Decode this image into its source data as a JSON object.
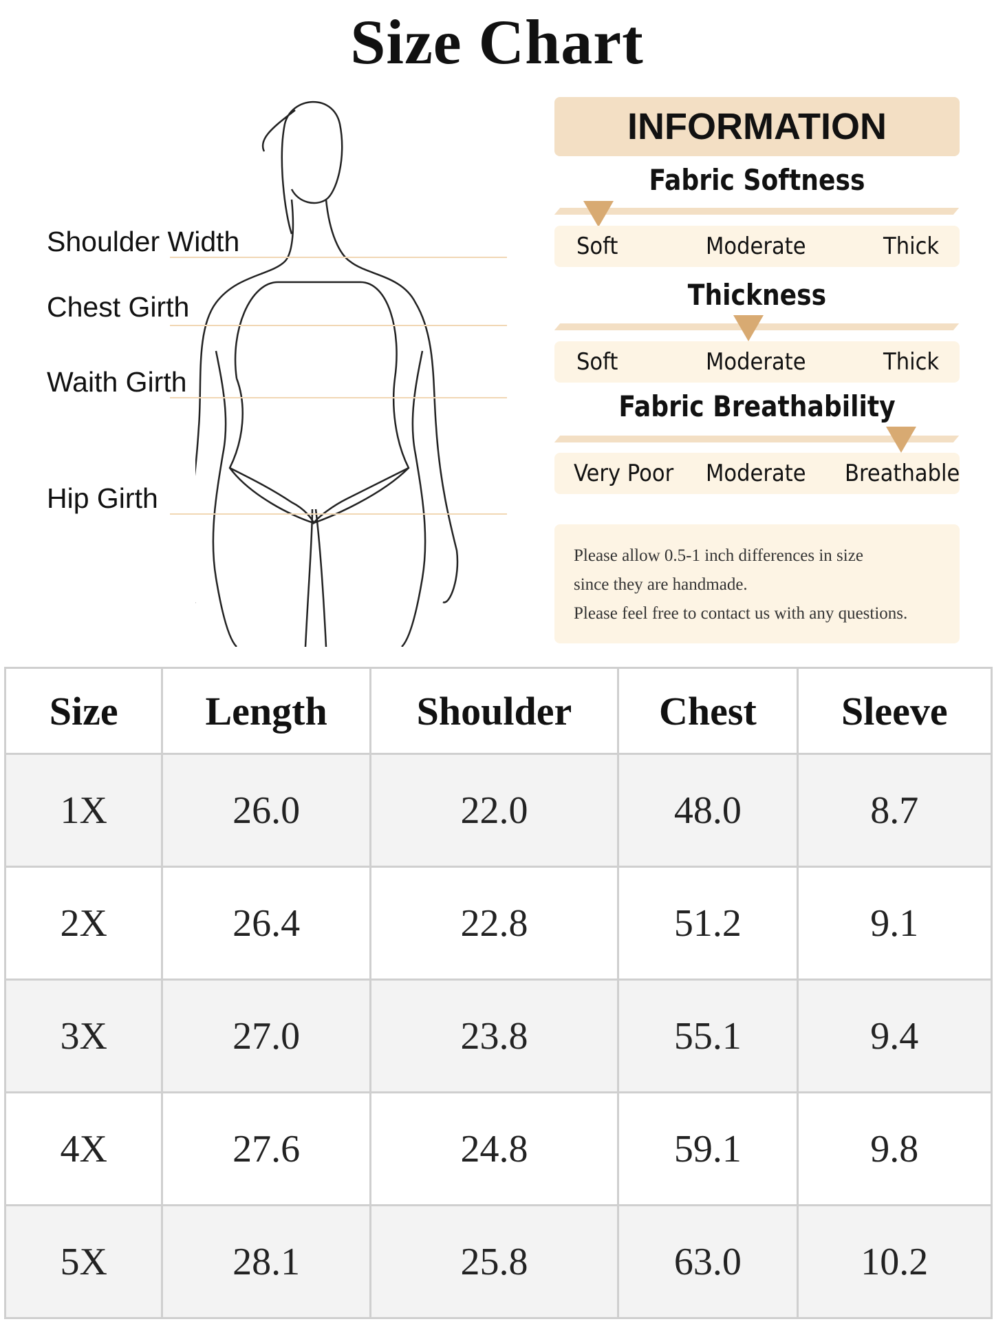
{
  "title": "Size Chart",
  "measurements": [
    "Shoulder Width",
    "Chest Girth",
    "Waith Girth",
    "Hip Girth"
  ],
  "info": {
    "header": "INFORMATION",
    "sections": [
      {
        "title": "Fabric Softness",
        "labels": [
          "Soft",
          "Moderate",
          "Thick"
        ],
        "selected": "Soft"
      },
      {
        "title": "Thickness",
        "labels": [
          "Soft",
          "Moderate",
          "Thick"
        ],
        "selected": "Moderate"
      },
      {
        "title": "Fabric Breathability",
        "labels": [
          "Very Poor",
          "Moderate",
          "Breathable"
        ],
        "selected": "Breathable"
      }
    ],
    "note": [
      "Please allow 0.5-1 inch differences in size",
      "since they are handmade.",
      "Please feel free to contact us with any questions."
    ],
    "accent_color": "#d8aa72"
  },
  "table": {
    "headers": [
      "Size",
      "Length",
      "Shoulder",
      "Chest",
      "Sleeve"
    ],
    "rows": [
      [
        "1X",
        "26.0",
        "22.0",
        "48.0",
        "8.7"
      ],
      [
        "2X",
        "26.4",
        "22.8",
        "51.2",
        "9.1"
      ],
      [
        "3X",
        "27.0",
        "23.8",
        "55.1",
        "9.4"
      ],
      [
        "4X",
        "27.6",
        "24.8",
        "59.1",
        "9.8"
      ],
      [
        "5X",
        "28.1",
        "25.8",
        "63.0",
        "10.2"
      ]
    ]
  }
}
